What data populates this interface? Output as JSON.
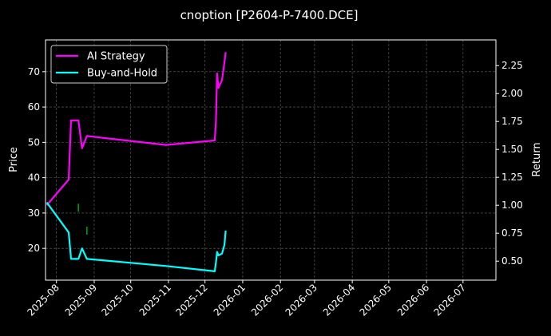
{
  "chart_data": {
    "type": "line",
    "title": "cnoption [P2604-P-7400.DCE]",
    "ylabel": "Price",
    "y2label": "Return",
    "xlim": [
      "2025-07-23",
      "2026-07-28"
    ],
    "ylim": [
      11,
      79
    ],
    "y2lim": [
      0.33,
      2.48
    ],
    "yticks": [
      20,
      30,
      40,
      50,
      60,
      70
    ],
    "y2ticks": [
      0.5,
      0.75,
      1.0,
      1.25,
      1.5,
      1.75,
      2.0,
      2.25
    ],
    "xticks": [
      "2025-08",
      "2025-09",
      "2025-10",
      "2025-11",
      "2025-12",
      "2026-01",
      "2026-02",
      "2026-03",
      "2026-04",
      "2026-05",
      "2026-06",
      "2026-07"
    ],
    "grid": true,
    "legend_position": "upper-left",
    "series": [
      {
        "name": "AI Strategy",
        "color": "#ff00ff",
        "axis": "right",
        "points": [
          [
            "2025-07-24",
            1.0
          ],
          [
            "2025-08-11",
            1.23
          ],
          [
            "2025-08-13",
            1.76
          ],
          [
            "2025-08-19",
            1.76
          ],
          [
            "2025-08-22",
            1.51
          ],
          [
            "2025-08-26",
            1.62
          ],
          [
            "2025-10-30",
            1.54
          ],
          [
            "2025-12-09",
            1.58
          ],
          [
            "2025-12-10",
            1.75
          ],
          [
            "2025-12-11",
            2.18
          ],
          [
            "2025-12-12",
            2.05
          ],
          [
            "2025-12-15",
            2.12
          ],
          [
            "2025-12-17",
            2.28
          ],
          [
            "2025-12-18",
            2.37
          ]
        ]
      },
      {
        "name": "Buy-and-Hold",
        "color": "#00ffff",
        "axis": "left",
        "points": [
          [
            "2025-07-24",
            33
          ],
          [
            "2025-08-11",
            24.5
          ],
          [
            "2025-08-13",
            17
          ],
          [
            "2025-08-19",
            17
          ],
          [
            "2025-08-22",
            20
          ],
          [
            "2025-08-26",
            17
          ],
          [
            "2025-10-30",
            15
          ],
          [
            "2025-12-09",
            13.5
          ],
          [
            "2025-12-10",
            16
          ],
          [
            "2025-12-11",
            19
          ],
          [
            "2025-12-12",
            18
          ],
          [
            "2025-12-15",
            18.5
          ],
          [
            "2025-12-17",
            21
          ],
          [
            "2025-12-18",
            25
          ]
        ]
      }
    ],
    "markers": [
      {
        "date": "2025-08-19",
        "value": 31.5,
        "color": "#00aa00"
      },
      {
        "date": "2025-08-26",
        "value": 25,
        "color": "#00aa00"
      }
    ]
  }
}
